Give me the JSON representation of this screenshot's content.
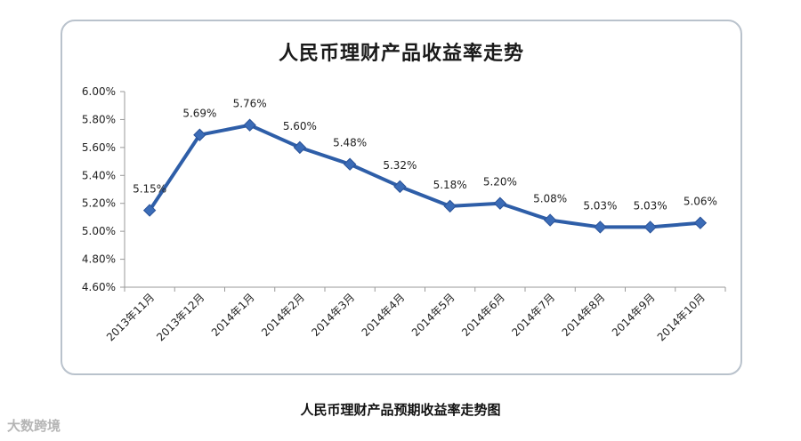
{
  "caption": "人民币理财产品预期收益率走势图",
  "watermark": "大数跨境",
  "colors": {
    "line": "#2e5ea8",
    "marker": "#3b6cb7",
    "grid": "#d0d0d0",
    "frame": "#b9c2cc"
  },
  "chart_data": {
    "type": "line",
    "title": "人民币理财产品收益率走势",
    "xlabel": "",
    "ylabel": "",
    "categories": [
      "2013年11月",
      "2013年12月",
      "2014年1月",
      "2014年2月",
      "2014年3月",
      "2014年4月",
      "2014年5月",
      "2014年6月",
      "2014年7月",
      "2014年8月",
      "2014年9月",
      "2014年10月"
    ],
    "series": [
      {
        "values": [
          5.15,
          5.69,
          5.76,
          5.6,
          5.48,
          5.32,
          5.18,
          5.2,
          5.08,
          5.03,
          5.03,
          5.06
        ]
      }
    ],
    "data_labels": [
      "5.15%",
      "5.69%",
      "5.76%",
      "5.60%",
      "5.48%",
      "5.32%",
      "5.18%",
      "5.20%",
      "5.08%",
      "5.03%",
      "5.03%",
      "5.06%"
    ],
    "yticks": [
      "4.60%",
      "4.80%",
      "5.00%",
      "5.20%",
      "5.40%",
      "5.60%",
      "5.80%",
      "6.00%"
    ],
    "ylim": [
      4.6,
      6.0
    ],
    "grid": false,
    "marker": "diamond"
  }
}
